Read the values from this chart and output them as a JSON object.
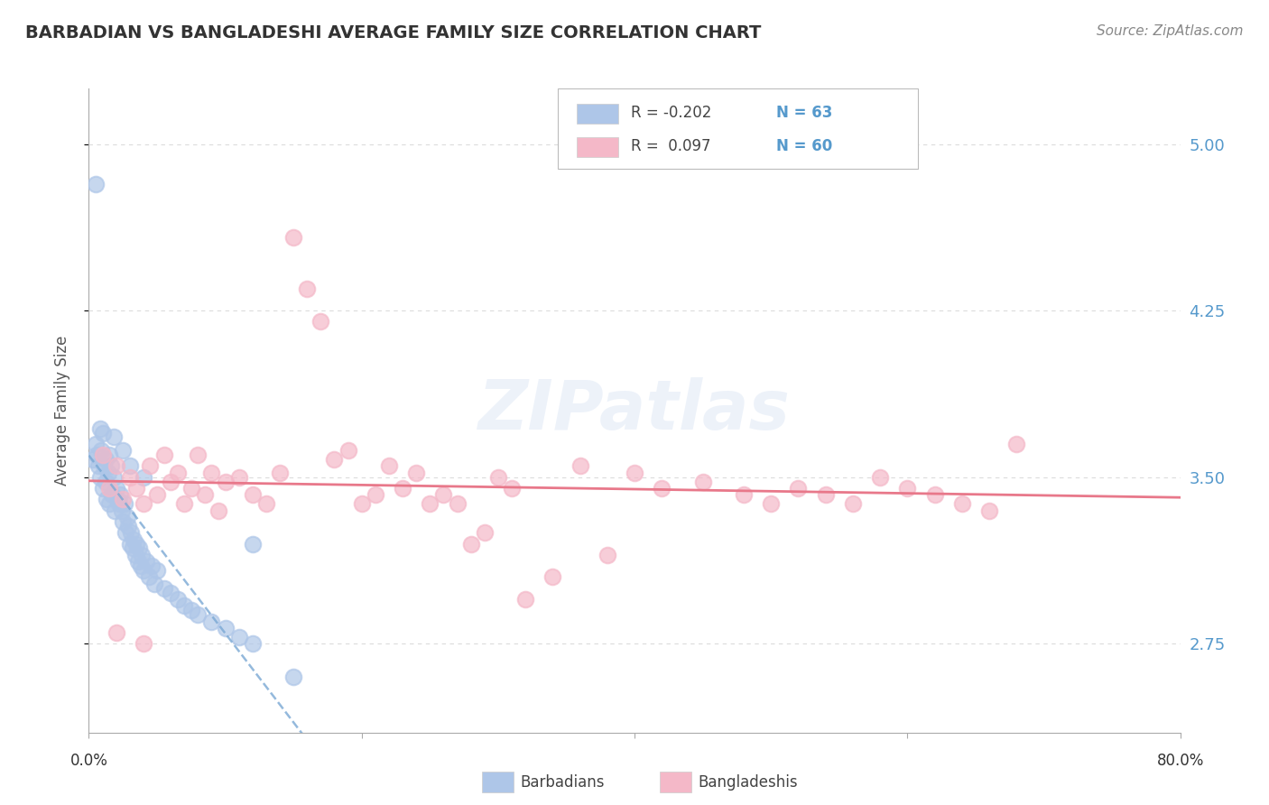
{
  "title": "BARBADIAN VS BANGLADESHI AVERAGE FAMILY SIZE CORRELATION CHART",
  "source": "Source: ZipAtlas.com",
  "ylabel": "Average Family Size",
  "watermark": "ZIPatlas",
  "barbadian_R": -0.202,
  "barbadian_N": 63,
  "bangladeshi_R": 0.097,
  "bangladeshi_N": 60,
  "barbadian_color": "#aec6e8",
  "bangladeshi_color": "#f4b8c8",
  "barbadian_line_color": "#7aa8d4",
  "bangladeshi_line_color": "#e8788a",
  "background_color": "#ffffff",
  "grid_color": "#cccccc",
  "title_color": "#333333",
  "source_color": "#888888",
  "right_tick_color": "#5599cc",
  "yticks": [
    2.75,
    3.5,
    4.25,
    5.0
  ],
  "xlim": [
    0.0,
    0.8
  ],
  "ylim": [
    2.35,
    5.25
  ],
  "barbadian_x": [
    0.003,
    0.005,
    0.006,
    0.007,
    0.008,
    0.009,
    0.01,
    0.01,
    0.011,
    0.012,
    0.013,
    0.014,
    0.015,
    0.015,
    0.016,
    0.017,
    0.018,
    0.019,
    0.02,
    0.021,
    0.022,
    0.023,
    0.024,
    0.025,
    0.026,
    0.027,
    0.028,
    0.029,
    0.03,
    0.031,
    0.032,
    0.033,
    0.034,
    0.035,
    0.036,
    0.037,
    0.038,
    0.039,
    0.04,
    0.042,
    0.044,
    0.046,
    0.048,
    0.05,
    0.055,
    0.06,
    0.065,
    0.07,
    0.075,
    0.08,
    0.09,
    0.1,
    0.11,
    0.12,
    0.005,
    0.008,
    0.012,
    0.018,
    0.025,
    0.03,
    0.04,
    0.12,
    0.15
  ],
  "barbadian_y": [
    3.58,
    4.82,
    3.6,
    3.55,
    3.5,
    3.62,
    3.45,
    3.7,
    3.55,
    3.48,
    3.4,
    3.52,
    3.6,
    3.38,
    3.55,
    3.42,
    3.5,
    3.35,
    3.45,
    3.4,
    3.38,
    3.42,
    3.35,
    3.3,
    3.38,
    3.25,
    3.32,
    3.28,
    3.2,
    3.25,
    3.18,
    3.22,
    3.15,
    3.2,
    3.12,
    3.18,
    3.1,
    3.15,
    3.08,
    3.12,
    3.05,
    3.1,
    3.02,
    3.08,
    3.0,
    2.98,
    2.95,
    2.92,
    2.9,
    2.88,
    2.85,
    2.82,
    2.78,
    2.75,
    3.65,
    3.72,
    3.58,
    3.68,
    3.62,
    3.55,
    3.5,
    3.2,
    2.6
  ],
  "bangladeshi_x": [
    0.01,
    0.015,
    0.02,
    0.025,
    0.03,
    0.035,
    0.04,
    0.045,
    0.05,
    0.055,
    0.06,
    0.065,
    0.07,
    0.075,
    0.08,
    0.085,
    0.09,
    0.095,
    0.1,
    0.11,
    0.12,
    0.13,
    0.14,
    0.15,
    0.16,
    0.17,
    0.18,
    0.19,
    0.2,
    0.21,
    0.22,
    0.23,
    0.24,
    0.25,
    0.26,
    0.27,
    0.28,
    0.29,
    0.3,
    0.31,
    0.32,
    0.34,
    0.36,
    0.38,
    0.4,
    0.42,
    0.45,
    0.48,
    0.5,
    0.52,
    0.54,
    0.56,
    0.58,
    0.6,
    0.62,
    0.64,
    0.66,
    0.68,
    0.02,
    0.04
  ],
  "bangladeshi_y": [
    3.6,
    3.45,
    3.55,
    3.4,
    3.5,
    3.45,
    3.38,
    3.55,
    3.42,
    3.6,
    3.48,
    3.52,
    3.38,
    3.45,
    3.6,
    3.42,
    3.52,
    3.35,
    3.48,
    3.5,
    3.42,
    3.38,
    3.52,
    4.58,
    4.35,
    4.2,
    3.58,
    3.62,
    3.38,
    3.42,
    3.55,
    3.45,
    3.52,
    3.38,
    3.42,
    3.38,
    3.2,
    3.25,
    3.5,
    3.45,
    2.95,
    3.05,
    3.55,
    3.15,
    3.52,
    3.45,
    3.48,
    3.42,
    3.38,
    3.45,
    3.42,
    3.38,
    3.5,
    3.45,
    3.42,
    3.38,
    3.35,
    3.65,
    2.8,
    2.75
  ]
}
